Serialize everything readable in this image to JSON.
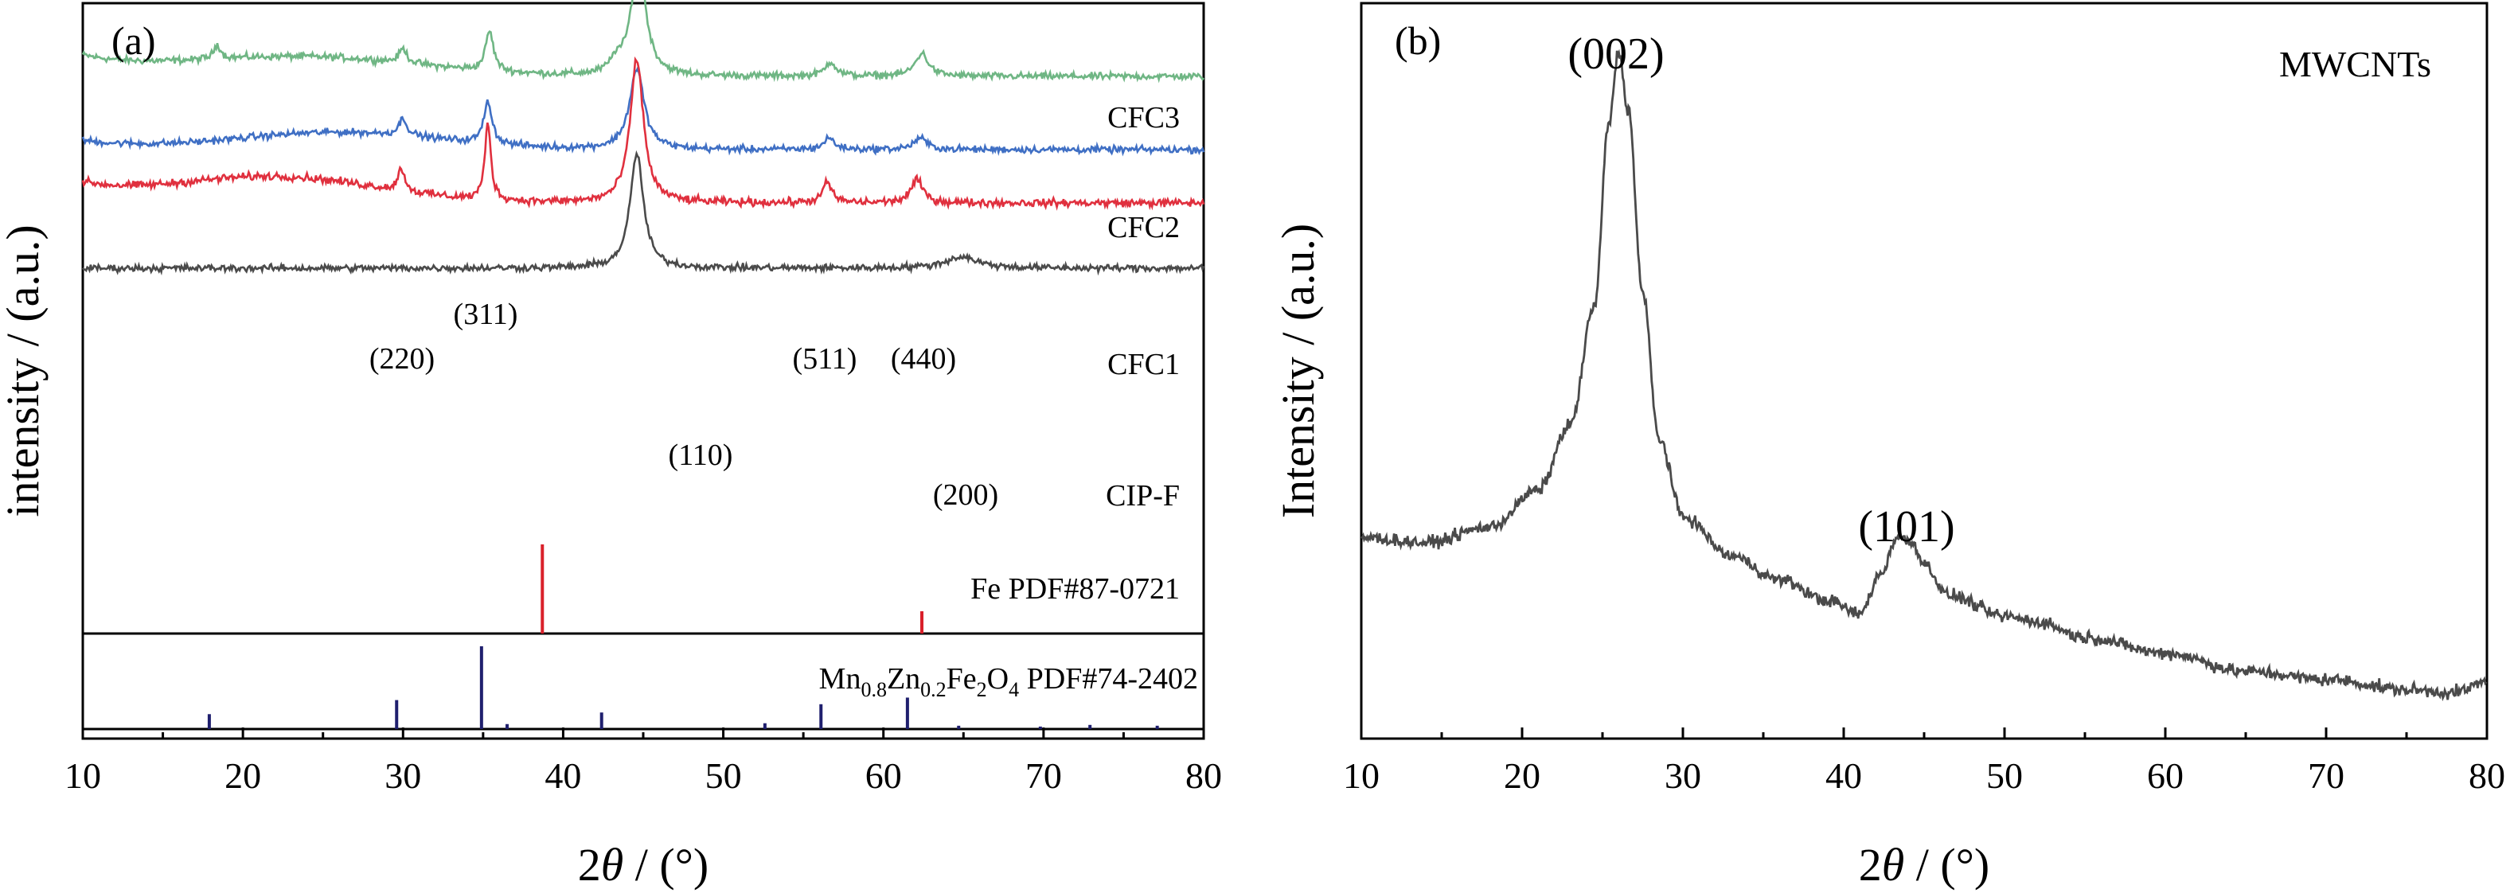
{
  "colors": {
    "CIP-F": "#4a4a4a",
    "CFC1": "#e0303e",
    "CFC2": "#3f6fc4",
    "CFC3": "#6fb684",
    "Fe_ref": "#d9202a",
    "MZF_ref": "#1f1f6e",
    "MWCNTs": "#4a4a4a",
    "axis": "#000000"
  },
  "chart_data": [
    {
      "panel": "(a)",
      "type": "line",
      "xlabel": "2θ / (°)",
      "xlabel_parts": {
        "prefix": "2",
        "var": "θ",
        "suffix": " / (°)"
      },
      "ylabel": "intensity / (a.u.)",
      "xlim": [
        10,
        80
      ],
      "xticks": [
        10,
        20,
        30,
        40,
        50,
        60,
        70,
        80
      ],
      "yticks_shown": false,
      "series": [
        {
          "name": "CFC3",
          "baseline": 3.05,
          "bump": [
            [
              18.2,
              0.06
            ],
            [
              26,
              0.1
            ]
          ],
          "noise": 0.035,
          "peaks": [
            [
              18.4,
              0.1,
              0.25
            ],
            [
              30.0,
              0.1,
              0.3
            ],
            [
              35.4,
              0.28,
              0.3
            ],
            [
              43.3,
              0.08,
              0.4
            ],
            [
              44.7,
              0.8,
              0.55
            ],
            [
              56.7,
              0.1,
              0.4
            ],
            [
              62.4,
              0.16,
              0.5
            ]
          ]
        },
        {
          "name": "CFC2",
          "baseline": 2.1,
          "bump": [
            [
              26,
              0.12
            ]
          ],
          "noise": 0.035,
          "peaks": [
            [
              30.0,
              0.12,
              0.3
            ],
            [
              35.3,
              0.3,
              0.3
            ],
            [
              44.6,
              0.56,
              0.55
            ],
            [
              56.6,
              0.08,
              0.4
            ],
            [
              62.3,
              0.08,
              0.5
            ]
          ]
        },
        {
          "name": "CFC1",
          "baseline": 1.12,
          "bump": [
            [
              22,
              0.18
            ]
          ],
          "noise": 0.04,
          "peaks": [
            [
              29.9,
              0.16,
              0.25
            ],
            [
              35.3,
              0.54,
              0.22
            ],
            [
              44.6,
              1.0,
              0.5
            ],
            [
              56.5,
              0.14,
              0.35
            ],
            [
              62.1,
              0.16,
              0.45
            ]
          ]
        },
        {
          "name": "CIP-F",
          "baseline": 0.0,
          "bump": [],
          "noise": 0.035,
          "peaks": [
            [
              44.6,
              0.8,
              0.5
            ],
            [
              64.9,
              0.08,
              1.2
            ]
          ]
        }
      ],
      "reference_patterns": [
        {
          "name": "Fe PDF#87-0721",
          "peaks": [
            [
              38.7,
              1.0
            ],
            [
              62.4,
              0.25
            ]
          ]
        },
        {
          "name": "Mn0.8Zn0.2Fe2O4 PDF#74-2402",
          "peaks": [
            [
              17.9,
              0.18
            ],
            [
              29.6,
              0.35
            ],
            [
              34.9,
              1.0
            ],
            [
              36.5,
              0.06
            ],
            [
              42.4,
              0.2
            ],
            [
              52.6,
              0.07
            ],
            [
              56.1,
              0.3
            ],
            [
              61.5,
              0.38
            ],
            [
              64.7,
              0.04
            ],
            [
              69.8,
              0.03
            ],
            [
              72.9,
              0.05
            ],
            [
              77.1,
              0.04
            ]
          ]
        }
      ],
      "labels": {
        "panel_tag": "(a)",
        "series": [
          "CFC3",
          "CFC2",
          "CFC1",
          "CIP-F"
        ],
        "fe_ref": "Fe PDF#87-0721",
        "mzf_ref_parts": [
          "Mn",
          "0.8",
          "Zn",
          "0.2",
          "Fe",
          "2",
          "O",
          "4",
          " PDF#74-2402"
        ],
        "peaks": [
          "(220)",
          "(311)",
          "(511)",
          "(440)",
          "(110)",
          "(200)"
        ]
      }
    },
    {
      "panel": "(b)",
      "type": "line",
      "xlabel": "2θ / (°)",
      "xlabel_parts": {
        "prefix": "2",
        "var": "θ",
        "suffix": " / (°)"
      },
      "ylabel": "Intensity / (a.u.)",
      "xlim": [
        10,
        80
      ],
      "xticks": [
        10,
        20,
        30,
        40,
        50,
        60,
        70,
        80
      ],
      "series": [
        {
          "name": "MWCNTs",
          "noise": 0.035,
          "points": [
            [
              10,
              0.62
            ],
            [
              14,
              0.6
            ],
            [
              18,
              0.66
            ],
            [
              21,
              0.8
            ],
            [
              23,
              1.05
            ],
            [
              24.5,
              1.5
            ],
            [
              25.4,
              2.2
            ],
            [
              26.0,
              2.47
            ],
            [
              26.6,
              2.25
            ],
            [
              27.5,
              1.55
            ],
            [
              28.5,
              1.0
            ],
            [
              30,
              0.7
            ],
            [
              33,
              0.55
            ],
            [
              36,
              0.46
            ],
            [
              39,
              0.38
            ],
            [
              41,
              0.33
            ],
            [
              42.3,
              0.48
            ],
            [
              43.3,
              0.62
            ],
            [
              44.3,
              0.6
            ],
            [
              45,
              0.52
            ],
            [
              46.5,
              0.4
            ],
            [
              50,
              0.32
            ],
            [
              52,
              0.3
            ],
            [
              55,
              0.24
            ],
            [
              60,
              0.18
            ],
            [
              65,
              0.11
            ],
            [
              70,
              0.08
            ],
            [
              75,
              0.04
            ],
            [
              78,
              0.03
            ],
            [
              80,
              0.07
            ]
          ]
        }
      ],
      "labels": {
        "panel_tag": "(b)",
        "sample": "MWCNTs",
        "peaks": [
          "(002)",
          "(101)"
        ]
      }
    }
  ]
}
